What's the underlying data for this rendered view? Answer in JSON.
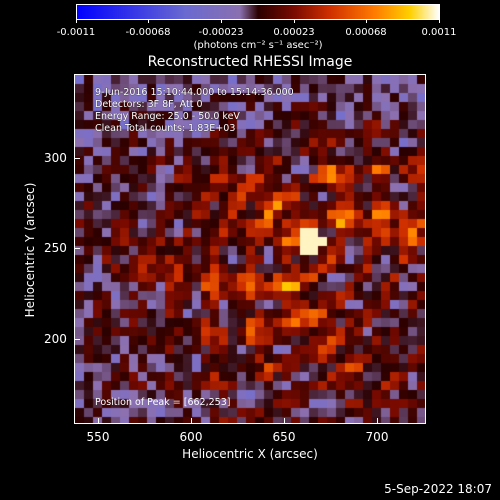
{
  "colorbar": {
    "ticks": [
      "-0.0011",
      "-0.00068",
      "-0.00023",
      "0.00023",
      "0.00068",
      "0.0011"
    ],
    "unit": "(photons cm⁻² s⁻¹ asec⁻²)"
  },
  "title": "Reconstructed RHESSI Image",
  "info": {
    "time": "9-Jun-2016 15:10:44.000 to 15:14:36.000",
    "detectors": "Detectors: 3F 8F, Att 0",
    "energy": "Energy Range: 25.0 - 50.0 keV",
    "clean": "Clean     Total counts: 1.83E+03"
  },
  "peak": "Position of Peak = [662,253]",
  "axes": {
    "xlabel": "Heliocentric X (arcsec)",
    "ylabel": "Heliocentric Y (arcsec)",
    "xticks": [
      "550",
      "600",
      "650",
      "700"
    ],
    "yticks": [
      "300",
      "250",
      "200"
    ],
    "xrange": [
      537,
      726
    ],
    "yrange": [
      152,
      339
    ]
  },
  "date": "5-Sep-2022 18:07",
  "colors": {
    "background": "#000000",
    "text": "#ffffff"
  }
}
